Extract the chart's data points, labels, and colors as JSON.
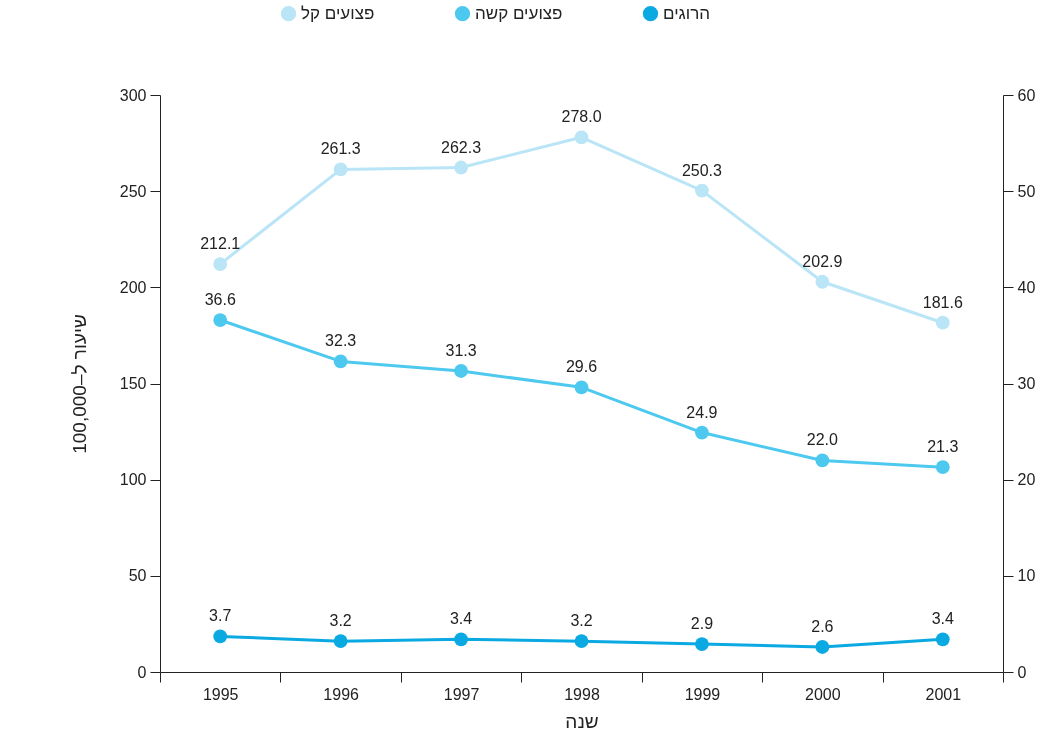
{
  "chart_data": {
    "type": "line",
    "xlabel": "שנה",
    "ylabel": "שיעור ל–100,000",
    "categories": [
      "1995",
      "1996",
      "1997",
      "1998",
      "1999",
      "2000",
      "2001"
    ],
    "series": [
      {
        "name": "הרוגים",
        "color": "#0ba9e1",
        "axis": "y2",
        "values": [
          3.7,
          3.2,
          3.4,
          3.2,
          2.9,
          2.6,
          3.4
        ],
        "value_labels": [
          "3.7",
          "3.2",
          "3.4",
          "3.2",
          "2.9",
          "2.6",
          "3.4"
        ]
      },
      {
        "name": "פצועים קשה",
        "color": "#4dc9f0",
        "axis": "y2",
        "values": [
          36.6,
          32.3,
          31.3,
          29.6,
          24.9,
          22.0,
          21.3
        ],
        "value_labels": [
          "36.6",
          "32.3",
          "31.3",
          "29.6",
          "24.9",
          "22.0",
          "21.3"
        ]
      },
      {
        "name": "פצועים קל",
        "color": "#b9e5f7",
        "values": [
          212.1,
          261.3,
          262.3,
          278.0,
          250.3,
          202.9,
          181.6
        ],
        "value_labels": [
          "212.1",
          "261.3",
          "262.3",
          "278.0",
          "250.3",
          "202.9",
          "181.6"
        ]
      }
    ],
    "ylim": [
      0,
      300
    ],
    "yticks": [
      0,
      50,
      100,
      150,
      200,
      250,
      300
    ],
    "y2lim": [
      0,
      60
    ],
    "y2ticks": [
      0,
      10,
      20,
      30,
      40,
      50,
      60
    ],
    "marker": "circle",
    "line_style": "solid",
    "grid": false,
    "legend": "top"
  }
}
